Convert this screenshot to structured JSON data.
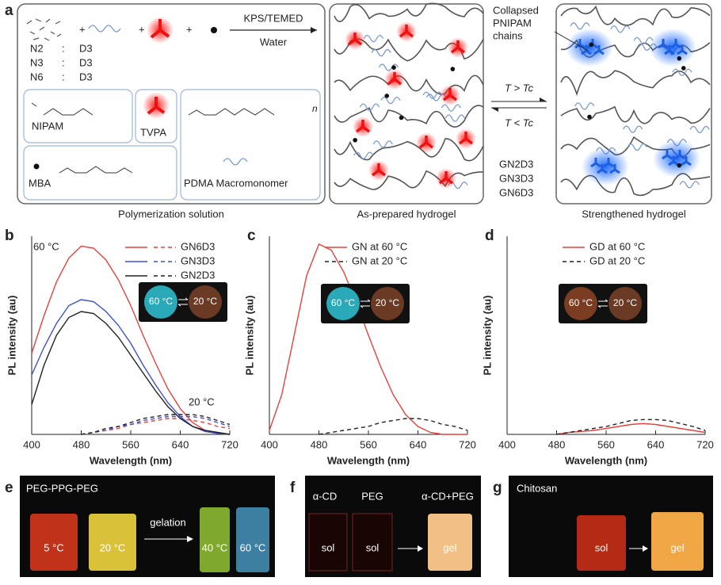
{
  "figure": {
    "panel_labels": [
      "a",
      "b",
      "c",
      "d",
      "e",
      "f",
      "g"
    ],
    "panel_a": {
      "reaction": "KPS/TEMED",
      "solvent": "Water",
      "ratios": [
        [
          "N2",
          ":",
          "D3"
        ],
        [
          "N3",
          ":",
          "D3"
        ],
        [
          "N6",
          ":",
          "D3"
        ]
      ],
      "monomers": [
        "NIPAM",
        "TVPA",
        "MBA",
        "PDMA Macromonomer"
      ],
      "subscript": "n",
      "captions": [
        "Polymerization solution",
        "As-prepared hydrogel",
        "Strengthened hydrogel"
      ],
      "heating": "T > Tc",
      "cooling": "T < Tc",
      "samples": [
        "GN2D3",
        "GN3D3",
        "GN6D3"
      ],
      "callout": [
        "Collapsed",
        "PNIPAM",
        "chains"
      ]
    },
    "panel_e": {
      "title": "PEG-PPG-PEG",
      "vials": [
        "5 °C",
        "20 °C",
        "40 °C",
        "60 °C"
      ],
      "arrow": "gelation"
    },
    "panel_f": {
      "titles": [
        "α-CD",
        "PEG",
        "α-CD+PEG"
      ],
      "vials": [
        "sol",
        "sol",
        "gel"
      ]
    },
    "panel_g": {
      "title": "Chitosan",
      "vials": [
        "sol",
        "gel"
      ]
    }
  },
  "chart_data": [
    {
      "type": "line",
      "xlabel": "Wavelength (nm)",
      "ylabel": "PL intensity (au)",
      "x": [
        400,
        420,
        440,
        460,
        480,
        500,
        520,
        540,
        560,
        580,
        600,
        620,
        640,
        660,
        680,
        700,
        720
      ],
      "xlim": [
        400,
        720
      ],
      "xticks": [
        400,
        480,
        560,
        640,
        720
      ],
      "ylim": [
        0,
        100
      ],
      "annotations": [
        "60 °C",
        "20 °C"
      ],
      "inset": [
        "60 °C",
        "20 °C"
      ],
      "series": [
        {
          "name": "GN6D3",
          "color": "#e8413c",
          "values": [
            41,
            60,
            77,
            89,
            95,
            94,
            88,
            78,
            65,
            50,
            36,
            23,
            13,
            6,
            2,
            1,
            0
          ],
          "dashed_values": [
            null,
            null,
            null,
            null,
            0,
            1,
            2,
            3,
            5,
            6,
            7,
            8,
            8,
            7,
            6,
            4,
            3
          ]
        },
        {
          "name": "GN3D3",
          "color": "#3b4fd8",
          "values": [
            30,
            44,
            56,
            65,
            68,
            67,
            62,
            55,
            46,
            35,
            25,
            16,
            9,
            4,
            1.5,
            0.5,
            0
          ],
          "dashed_values": [
            null,
            null,
            null,
            null,
            0,
            1,
            2,
            4,
            5,
            7,
            8,
            9,
            9,
            9,
            8,
            6,
            4
          ]
        },
        {
          "name": "GN2D3",
          "color": "#222222",
          "values": [
            15,
            35,
            50,
            59,
            62,
            61,
            56,
            49,
            40,
            31,
            22,
            14,
            8,
            4,
            2,
            1,
            0
          ],
          "dashed_values": [
            null,
            null,
            null,
            null,
            0,
            1,
            3,
            4,
            6,
            8,
            9,
            10,
            10,
            10,
            9,
            7,
            5
          ]
        }
      ]
    },
    {
      "type": "line",
      "xlabel": "Wavelength (nm)",
      "ylabel": "PL intensity (au)",
      "x": [
        400,
        420,
        440,
        460,
        480,
        500,
        520,
        540,
        560,
        580,
        600,
        620,
        640,
        660,
        680,
        700,
        720
      ],
      "xlim": [
        400,
        720
      ],
      "xticks": [
        400,
        480,
        560,
        640,
        720
      ],
      "ylim": [
        0,
        100
      ],
      "inset": [
        "60 °C",
        "20 °C"
      ],
      "series": [
        {
          "name": "GN at 60 °C",
          "color": "#e8413c",
          "dashed": false,
          "values": [
            2,
            20,
            50,
            80,
            96,
            93,
            82,
            67,
            50,
            34,
            20,
            10,
            4,
            1,
            0,
            0,
            0
          ]
        },
        {
          "name": "GN at 20 °C",
          "color": "#222222",
          "dashed": true,
          "values": [
            null,
            null,
            null,
            null,
            0,
            1,
            2,
            3,
            4,
            6,
            7,
            8,
            8,
            7,
            5,
            4,
            2
          ]
        }
      ]
    },
    {
      "type": "line",
      "xlabel": "Wavelength (nm)",
      "ylabel": "PL intensity (au)",
      "x": [
        400,
        420,
        440,
        460,
        480,
        500,
        520,
        540,
        560,
        580,
        600,
        620,
        640,
        660,
        680,
        700,
        720
      ],
      "xlim": [
        400,
        720
      ],
      "xticks": [
        400,
        480,
        560,
        640,
        720
      ],
      "ylim": [
        0,
        100
      ],
      "inset": [
        "60 °C",
        "20 °C"
      ],
      "series": [
        {
          "name": "GD at 60 °C",
          "color": "#e8413c",
          "dashed": false,
          "values": [
            null,
            null,
            null,
            null,
            0,
            1,
            1.5,
            2,
            3,
            4,
            5,
            5.5,
            5,
            4,
            3,
            2,
            1
          ]
        },
        {
          "name": "GD at 20 °C",
          "color": "#222222",
          "dashed": true,
          "values": [
            null,
            null,
            null,
            null,
            0,
            1,
            2,
            3,
            4,
            5.5,
            7,
            7.5,
            7.5,
            7,
            5.5,
            4,
            2
          ]
        }
      ]
    }
  ]
}
